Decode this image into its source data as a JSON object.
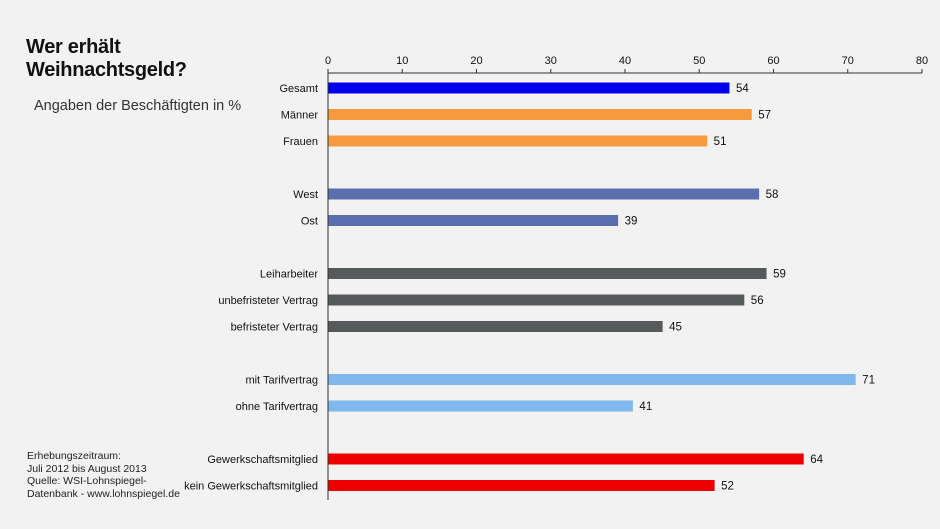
{
  "title": "Wer erhält\nWeihnachtsgeld?",
  "subtitle": "Angaben der Beschäftigten in %",
  "source": "Erhebungszeitraum:\nJuli 2012 bis August 2013\nQuelle: WSI-Lohnspiegel-\nDatenbank - www.lohnspiegel.de",
  "chart_data": {
    "type": "bar",
    "orientation": "horizontal",
    "xlim": [
      0,
      80
    ],
    "ticks": [
      0,
      10,
      20,
      30,
      40,
      50,
      60,
      70,
      80
    ],
    "axis_position": "top",
    "grid": false,
    "categories": [
      {
        "label": "Gesamt",
        "value": 54,
        "color": "#0000ee",
        "group": 0
      },
      {
        "label": "Männer",
        "value": 57,
        "color": "#f79a3e",
        "group": 0
      },
      {
        "label": "Frauen",
        "value": 51,
        "color": "#f79a3e",
        "group": 0
      },
      {
        "label": "West",
        "value": 58,
        "color": "#5b6fae",
        "group": 1
      },
      {
        "label": "Ost",
        "value": 39,
        "color": "#5b6fae",
        "group": 1
      },
      {
        "label": "Leiharbeiter",
        "value": 59,
        "color": "#575a5b",
        "group": 2
      },
      {
        "label": "unbefristeter Vertrag",
        "value": 56,
        "color": "#575a5b",
        "group": 2
      },
      {
        "label": "befristeter Vertrag",
        "value": 45,
        "color": "#575a5b",
        "group": 2
      },
      {
        "label": "mit Tarifvertrag",
        "value": 71,
        "color": "#7fb8ec",
        "group": 3
      },
      {
        "label": "ohne Tarifvertrag",
        "value": 41,
        "color": "#7fb8ec",
        "group": 3
      },
      {
        "label": "Gewerkschaftsmitglied",
        "value": 64,
        "color": "#ee0000",
        "group": 4
      },
      {
        "label": "kein Gewerkschaftsmitglied",
        "value": 52,
        "color": "#ee0000",
        "group": 4
      }
    ]
  }
}
